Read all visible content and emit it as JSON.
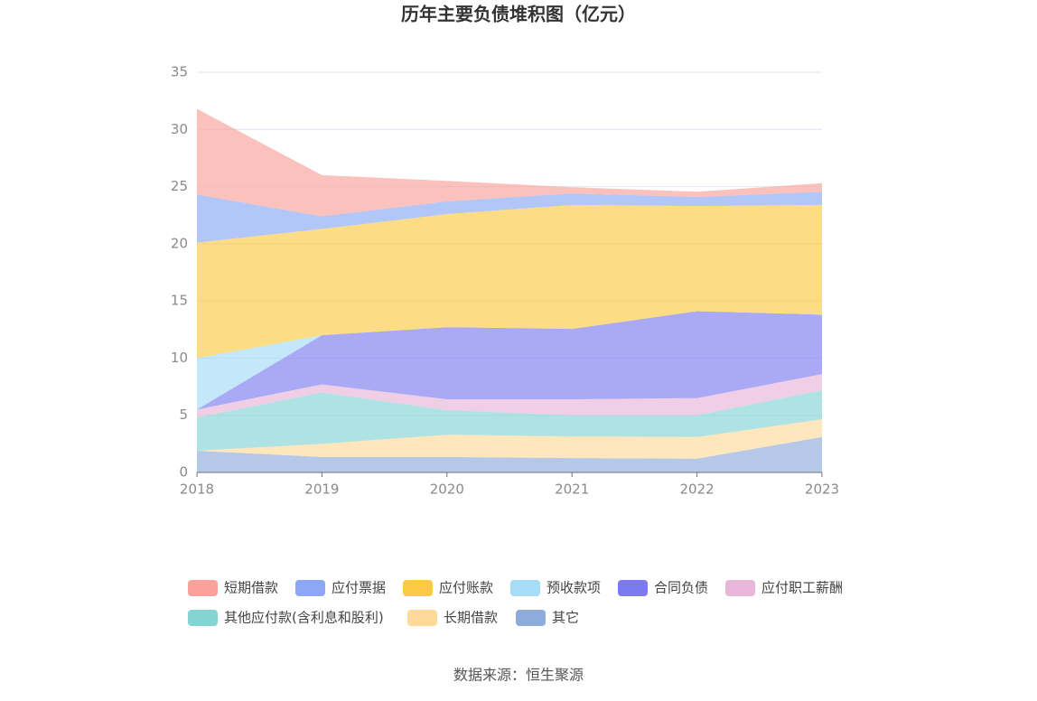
{
  "chart_data": {
    "type": "stacked-area",
    "title": "历年主要负债堆积图（亿元）",
    "categories": [
      "2018",
      "2019",
      "2020",
      "2021",
      "2022",
      "2023"
    ],
    "ylim": [
      0,
      35
    ],
    "yticks": [
      0,
      5,
      10,
      15,
      20,
      25,
      30,
      35
    ],
    "grid": true,
    "series": [
      {
        "name": "短期借款",
        "color": "#f9a19a",
        "values": [
          7.5,
          3.6,
          1.8,
          0.55,
          0.45,
          0.75
        ]
      },
      {
        "name": "应付票据",
        "color": "#8ba7f5",
        "values": [
          4.2,
          1.1,
          1.1,
          1.0,
          0.8,
          1.15
        ]
      },
      {
        "name": "应付账款",
        "color": "#fcc945",
        "values": [
          10.1,
          9.3,
          9.9,
          10.85,
          9.2,
          9.6
        ]
      },
      {
        "name": "预收款项",
        "color": "#a5dcf7",
        "values": [
          4.5,
          0,
          0,
          0,
          0,
          0
        ]
      },
      {
        "name": "合同负债",
        "color": "#7b7bef",
        "values": [
          0,
          4.3,
          6.3,
          6.15,
          7.6,
          5.2
        ]
      },
      {
        "name": "应付职工薪酬",
        "color": "#e8b6d8",
        "values": [
          0.7,
          0.7,
          0.95,
          1.4,
          1.5,
          1.4
        ]
      },
      {
        "name": "其他应付款(含利息和股利)",
        "color": "#84d4d4",
        "values": [
          2.9,
          4.5,
          2.15,
          1.85,
          1.9,
          2.55
        ]
      },
      {
        "name": "长期借款",
        "color": "#fdd99a",
        "values": [
          0,
          1.15,
          1.95,
          1.9,
          1.9,
          1.55
        ]
      },
      {
        "name": "其它",
        "color": "#8dabdb",
        "values": [
          1.9,
          1.35,
          1.35,
          1.25,
          1.2,
          3.1
        ]
      }
    ],
    "source": "数据来源：恒生聚源"
  }
}
